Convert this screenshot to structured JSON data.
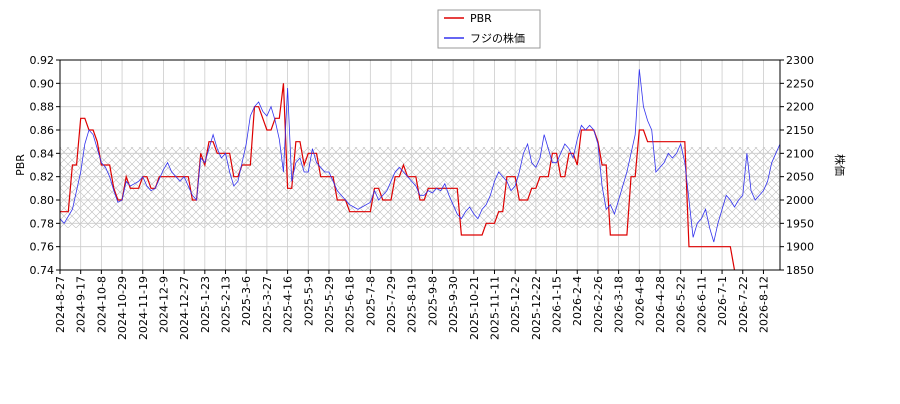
{
  "chart_data": {
    "type": "line",
    "categories": [
      "2024-8-27",
      null,
      null,
      null,
      null,
      "2024-9-17",
      null,
      null,
      null,
      null,
      "2024-10-8",
      null,
      null,
      null,
      null,
      "2024-10-29",
      null,
      null,
      null,
      null,
      "2024-11-19",
      null,
      null,
      null,
      null,
      "2024-12-9",
      null,
      null,
      null,
      null,
      "2024-12-27",
      null,
      null,
      null,
      null,
      "2025-1-23",
      null,
      null,
      null,
      null,
      "2025-2-13",
      null,
      null,
      null,
      null,
      "2025-3-6",
      null,
      null,
      null,
      null,
      "2025-3-27",
      null,
      null,
      null,
      null,
      "2025-4-16",
      null,
      null,
      null,
      null,
      "2025-5-9",
      null,
      null,
      null,
      null,
      "2025-5-29",
      null,
      null,
      null,
      null,
      "2025-6-18",
      null,
      null,
      null,
      null,
      "2025-7-8",
      null,
      null,
      null,
      null,
      "2025-7-29",
      null,
      null,
      null,
      null,
      "2025-8-19",
      null,
      null,
      null,
      null,
      "2025-9-8",
      null,
      null,
      null,
      null,
      "2025-9-30",
      null,
      null,
      null,
      null,
      "2025-10-21",
      null,
      null,
      null,
      null,
      "2025-11-11",
      null,
      null,
      null,
      null,
      "2025-12-2",
      null,
      null,
      null,
      null,
      "2025-12-22",
      null,
      null,
      null,
      null,
      "2026-1-15",
      null,
      null,
      null,
      null,
      "2026-2-4",
      null,
      null,
      null,
      null,
      "2026-2-26",
      null,
      null,
      null,
      null,
      "2026-3-18",
      null,
      null,
      null,
      null,
      "2026-4-8",
      null,
      null,
      null,
      null,
      "2026-4-28",
      null,
      null,
      null,
      null,
      "2026-5-22",
      null,
      null,
      null,
      null,
      "2026-6-11",
      null,
      null,
      null,
      null,
      "2026-7-1",
      null,
      null,
      null,
      null,
      "2026-7-22",
      null,
      null,
      null,
      null,
      "2026-8-12",
      null,
      null,
      null,
      null
    ],
    "series": [
      {
        "name": "PBR",
        "color": "#dd0000",
        "axis": "y",
        "values": [
          0.79,
          0.79,
          0.79,
          0.83,
          0.83,
          0.87,
          0.87,
          0.86,
          0.86,
          0.85,
          0.83,
          0.83,
          0.83,
          0.81,
          0.8,
          0.8,
          0.82,
          0.81,
          0.81,
          0.81,
          0.82,
          0.82,
          0.81,
          0.81,
          0.82,
          0.82,
          0.82,
          0.82,
          0.82,
          0.82,
          0.82,
          0.82,
          0.8,
          0.8,
          0.84,
          0.83,
          0.85,
          0.85,
          0.84,
          0.84,
          0.84,
          0.84,
          0.82,
          0.82,
          0.83,
          0.83,
          0.83,
          0.88,
          0.88,
          0.87,
          0.86,
          0.86,
          0.87,
          0.87,
          0.9,
          0.81,
          0.81,
          0.85,
          0.85,
          0.83,
          0.84,
          0.84,
          0.84,
          0.82,
          0.82,
          0.82,
          0.82,
          0.8,
          0.8,
          0.8,
          0.79,
          0.79,
          0.79,
          0.79,
          0.79,
          0.79,
          0.81,
          0.81,
          0.8,
          0.8,
          0.8,
          0.82,
          0.82,
          0.83,
          0.82,
          0.82,
          0.82,
          0.8,
          0.8,
          0.81,
          0.81,
          0.81,
          0.81,
          0.81,
          0.81,
          0.81,
          0.81,
          0.77,
          0.77,
          0.77,
          0.77,
          0.77,
          0.77,
          0.78,
          0.78,
          0.78,
          0.79,
          0.79,
          0.82,
          0.82,
          0.82,
          0.8,
          0.8,
          0.8,
          0.81,
          0.81,
          0.82,
          0.82,
          0.82,
          0.84,
          0.84,
          0.82,
          0.82,
          0.84,
          0.84,
          0.83,
          0.86,
          0.86,
          0.86,
          0.86,
          0.85,
          0.83,
          0.83,
          0.77,
          0.77,
          0.77,
          0.77,
          0.77,
          0.82,
          0.82,
          0.86,
          0.86,
          0.85,
          0.85,
          0.85,
          0.85,
          0.85,
          0.85,
          0.85,
          0.85,
          0.85,
          0.85,
          0.76,
          0.76,
          0.76,
          0.76,
          0.76,
          0.76,
          0.76,
          0.76,
          0.76,
          0.76,
          0.76,
          0.74,
          null,
          null,
          null,
          null,
          null,
          null,
          null,
          null,
          null,
          null,
          null
        ]
      },
      {
        "name": "フジの株価",
        "color": "#3333ee",
        "axis": "y2",
        "values": [
          1960,
          1950,
          1965,
          1980,
          2020,
          2060,
          2120,
          2150,
          2140,
          2110,
          2080,
          2070,
          2050,
          2020,
          1995,
          2000,
          2040,
          2030,
          2035,
          2040,
          2050,
          2030,
          2020,
          2025,
          2045,
          2065,
          2080,
          2060,
          2050,
          2040,
          2050,
          2030,
          2010,
          2000,
          2090,
          2080,
          2110,
          2140,
          2110,
          2090,
          2100,
          2060,
          2030,
          2040,
          2080,
          2120,
          2180,
          2200,
          2210,
          2190,
          2180,
          2200,
          2170,
          2130,
          2060,
          2240,
          2040,
          2080,
          2090,
          2060,
          2060,
          2110,
          2080,
          2070,
          2060,
          2060,
          2040,
          2020,
          2010,
          2000,
          1990,
          1985,
          1980,
          1985,
          1990,
          1995,
          2020,
          2000,
          2010,
          2020,
          2040,
          2060,
          2070,
          2060,
          2050,
          2040,
          2030,
          2010,
          2010,
          2020,
          2015,
          2025,
          2020,
          2035,
          2010,
          1990,
          1970,
          1960,
          1975,
          1985,
          1970,
          1960,
          1980,
          1990,
          2010,
          2040,
          2060,
          2050,
          2040,
          2020,
          2030,
          2060,
          2100,
          2120,
          2080,
          2070,
          2090,
          2140,
          2110,
          2080,
          2080,
          2100,
          2120,
          2110,
          2090,
          2130,
          2160,
          2150,
          2160,
          2150,
          2120,
          2030,
          1980,
          1990,
          1970,
          2000,
          2030,
          2060,
          2100,
          2140,
          2280,
          2200,
          2170,
          2150,
          2060,
          2070,
          2080,
          2100,
          2090,
          2100,
          2120,
          2080,
          2000,
          1920,
          1950,
          1960,
          1980,
          1940,
          1910,
          1950,
          1980,
          2010,
          2000,
          1985,
          2000,
          2010,
          2100,
          2020,
          2000,
          2010,
          2020,
          2040,
          2080,
          2100,
          2120
        ]
      }
    ],
    "y_label": "PBR",
    "y2_label": "株価",
    "ylim": [
      0.74,
      0.92
    ],
    "yticks": [
      0.74,
      0.76,
      0.78,
      {
        "value": 0.8,
        "label": "0.80"
      },
      0.82,
      0.84,
      0.86,
      0.88,
      {
        "value": 0.9,
        "label": "0.90"
      },
      0.92
    ],
    "y2lim": [
      1850,
      2300
    ],
    "y2ticks": [
      1850,
      1900,
      1950,
      2000,
      2050,
      2100,
      2150,
      2200,
      2250,
      2300
    ],
    "grid": true,
    "legend": "upper center"
  }
}
